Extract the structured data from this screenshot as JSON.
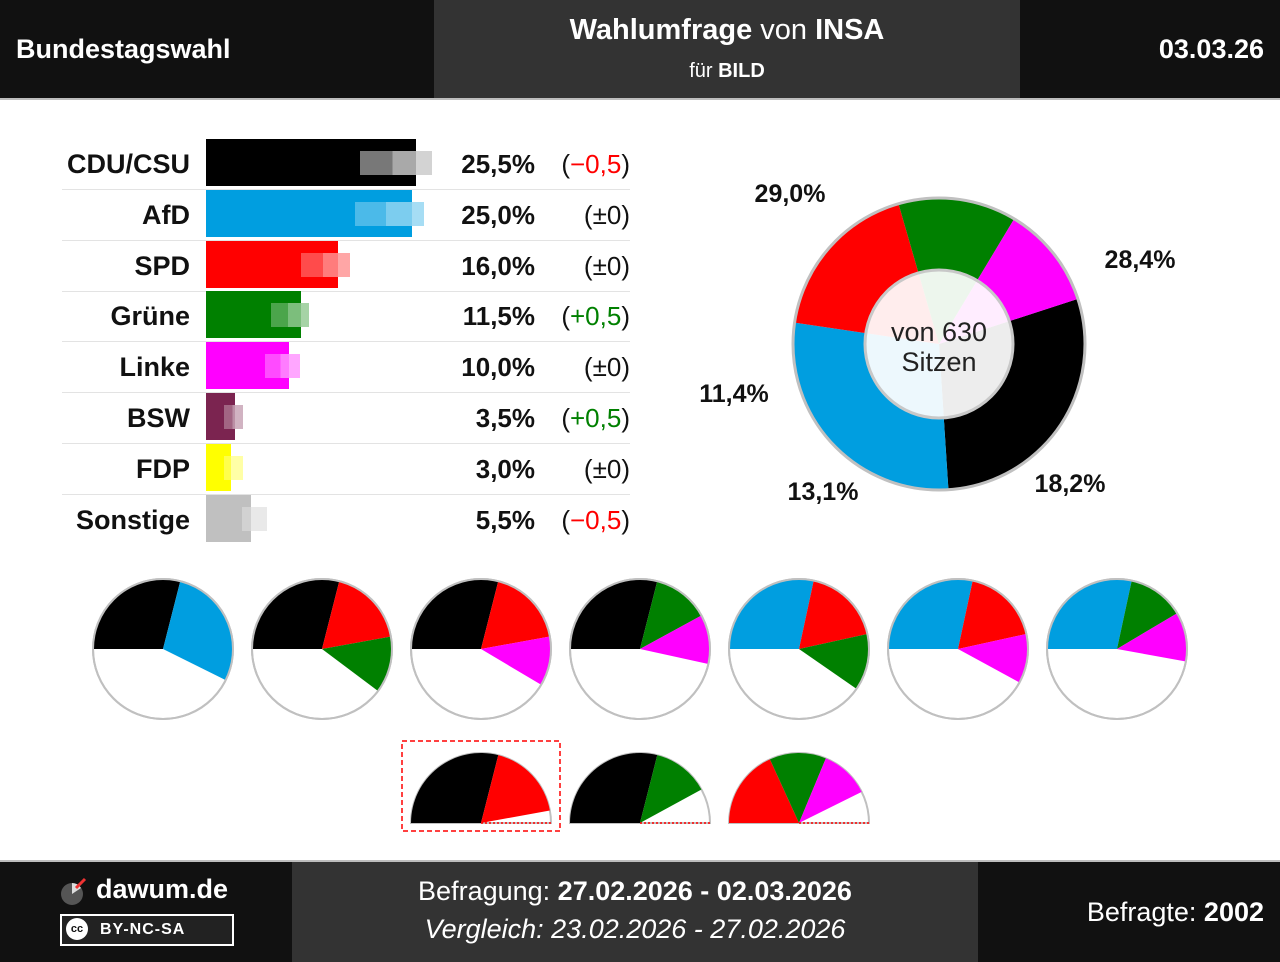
{
  "header": {
    "left": "Bundestagswahl",
    "title_bold": "Wahlumfrage",
    "title_mid": "von",
    "institute": "INSA",
    "sub_prefix": "für",
    "client": "BILD",
    "date": "03.03.26"
  },
  "colors": {
    "CDU/CSU": "#000000",
    "AfD": "#009ee0",
    "SPD": "#ff0000",
    "Grüne": "#008000",
    "Linke": "#ff00ff",
    "BSW": "#7b2450",
    "FDP": "#ffff00",
    "Sonstige": "#c0c0c0"
  },
  "chart_data": [
    {
      "type": "bar",
      "categories": [
        "CDU/CSU",
        "AfD",
        "SPD",
        "Grüne",
        "Linke",
        "BSW",
        "FDP",
        "Sonstige"
      ],
      "series": [
        {
          "values": [
            25.5,
            25.0,
            16.0,
            11.5,
            10.0,
            3.5,
            3.0,
            5.5
          ]
        },
        {
          "values": [
            26.0,
            25.0,
            16.0,
            11.0,
            10.0,
            3.0,
            3.0,
            6.0
          ]
        }
      ],
      "value_labels": [
        "25,5%",
        "25,0%",
        "16,0%",
        "11,5%",
        "10,0%",
        "3,5%",
        "3,0%",
        "5,5%"
      ],
      "change_labels": [
        "−0,5",
        "±0",
        "±0",
        "+0,5",
        "±0",
        "+0,5",
        "±0",
        "−0,5"
      ],
      "change_colors": [
        "#ff0000",
        "#111111",
        "#111111",
        "#008000",
        "#111111",
        "#008000",
        "#111111",
        "#ff0000"
      ]
    },
    {
      "type": "pie",
      "categories": [
        "CDU/CSU",
        "AfD",
        "SPD",
        "Grüne",
        "Linke"
      ],
      "values": [
        29.0,
        28.4,
        18.2,
        13.1,
        11.4
      ],
      "labels": [
        "29,0%",
        "28,4%",
        "18,2%",
        "13,1%",
        "11,4%"
      ],
      "center_text": [
        "von 630",
        "Sitzen"
      ]
    },
    {
      "type": "pie",
      "coalitions": [
        [
          "CDU/CSU",
          "AfD"
        ],
        [
          "CDU/CSU",
          "SPD",
          "Grüne"
        ],
        [
          "CDU/CSU",
          "SPD",
          "Linke"
        ],
        [
          "CDU/CSU",
          "Grüne",
          "Linke"
        ],
        [
          "AfD",
          "SPD",
          "Grüne"
        ],
        [
          "AfD",
          "SPD",
          "Linke"
        ],
        [
          "AfD",
          "Grüne",
          "Linke"
        ]
      ],
      "small_coalitions": [
        [
          "CDU/CSU",
          "SPD"
        ],
        [
          "CDU/CSU",
          "Grüne"
        ],
        [
          "SPD",
          "Grüne",
          "Linke"
        ]
      ],
      "highlighted": 0
    }
  ],
  "footer": {
    "brand": "dawum.de",
    "license": "BY-NC-SA",
    "cc_mark": "cc",
    "survey_label": "Befragung:",
    "survey_range": "27.02.2026 - 02.03.2026",
    "compare_label": "Vergleich:",
    "compare_range": "23.02.2026 - 27.02.2026",
    "respondents_label": "Befragte:",
    "respondents": "2002"
  }
}
